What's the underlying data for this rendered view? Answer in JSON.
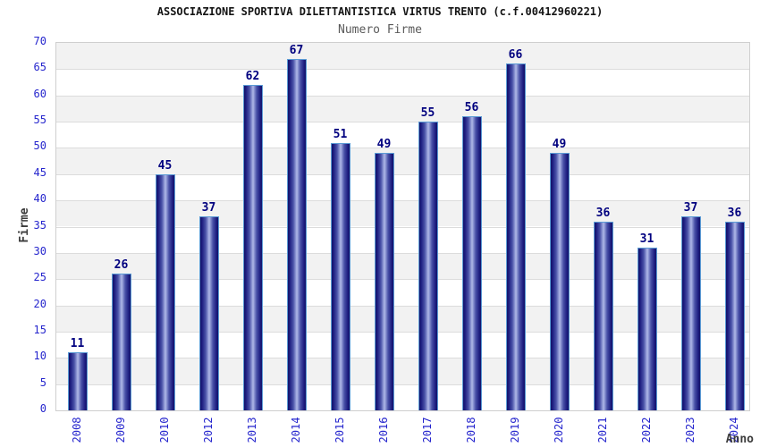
{
  "header": {
    "title": "ASSOCIAZIONE SPORTIVA DILETTANTISTICA VIRTUS TRENTO (c.f.00412960221)",
    "subtitle": "Numero Firme"
  },
  "chart_data": {
    "type": "bar",
    "title": "ASSOCIAZIONE SPORTIVA DILETTANTISTICA VIRTUS TRENTO (c.f.00412960221)",
    "subtitle": "Numero Firme",
    "xlabel": "Anno",
    "ylabel": "Firme",
    "categories": [
      "2008",
      "2009",
      "2010",
      "2012",
      "2013",
      "2014",
      "2015",
      "2016",
      "2017",
      "2018",
      "2019",
      "2020",
      "2021",
      "2022",
      "2023",
      "2024"
    ],
    "values": [
      11,
      26,
      45,
      37,
      62,
      67,
      51,
      49,
      55,
      56,
      66,
      49,
      36,
      31,
      37,
      36
    ],
    "ylim": [
      0,
      70
    ],
    "yticks": [
      0,
      5,
      10,
      15,
      20,
      25,
      30,
      35,
      40,
      45,
      50,
      55,
      60,
      65,
      70
    ],
    "grid": "horizontal-bands",
    "legend": "none",
    "colors": {
      "bar_dark": "#131368",
      "bar_light": "#b2bae8",
      "bar_border": "#5b9bd5",
      "value_label": "#00007f",
      "tick_label": "#2525cd",
      "band_gray": "#f2f2f2",
      "band_white": "#ffffff",
      "gridline": "#dcdcdc",
      "title": "#141414",
      "subtitle": "#5a5a5a",
      "axis_label": "#3c3c3c"
    }
  }
}
